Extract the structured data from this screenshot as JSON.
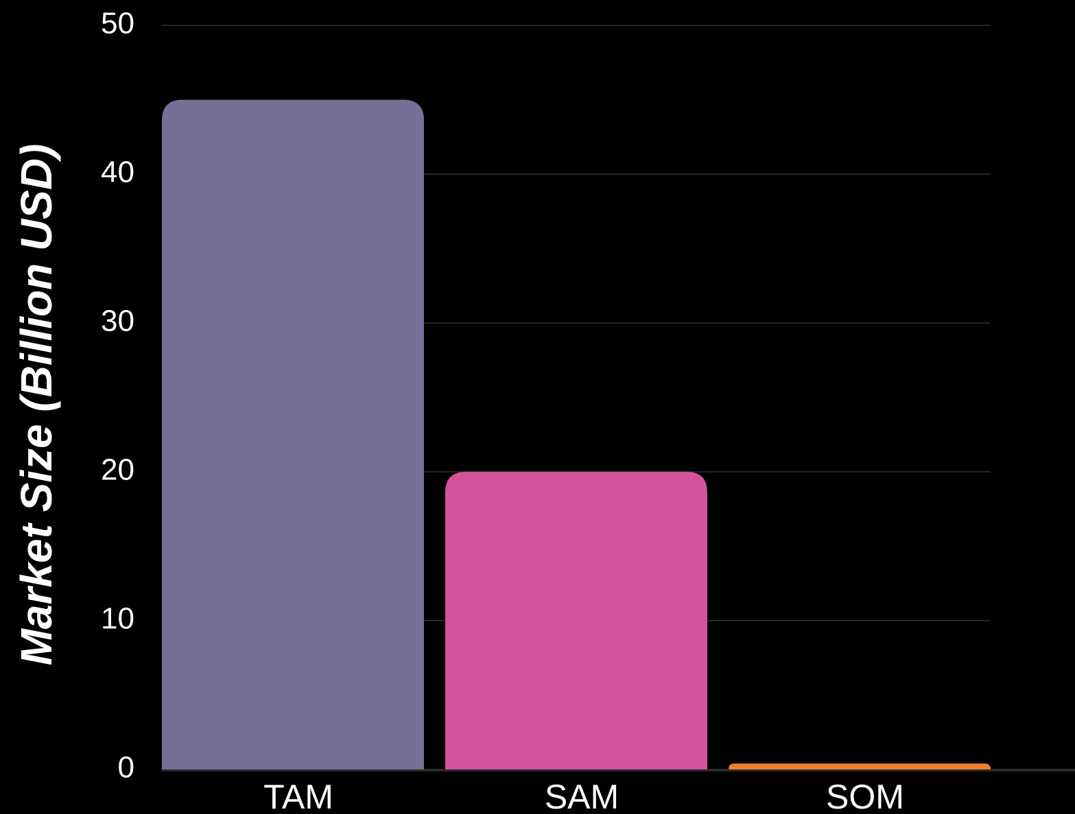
{
  "chart_data": {
    "type": "bar",
    "y_label": "Market Size (Billion USD)",
    "categories": [
      "TAM",
      "SAM",
      "SOM"
    ],
    "values": [
      45,
      20,
      0.4
    ],
    "colors": [
      "#766f98",
      "#d4539c",
      "#f08030"
    ],
    "ylim": [
      0,
      50
    ],
    "yticks": [
      0,
      10,
      20,
      30,
      40,
      50
    ],
    "grid": true
  }
}
